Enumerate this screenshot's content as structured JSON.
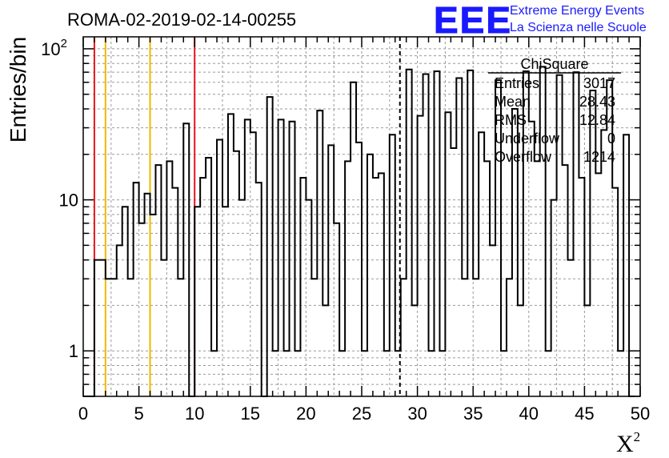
{
  "chart_data": {
    "type": "bar",
    "title": "ROMA-02-2019-02-14-00255",
    "xlabel": "X",
    "xlabel_sup": "2",
    "ylabel": "Entries/bin",
    "xlim": [
      0,
      50
    ],
    "ylim": [
      0.5,
      120
    ],
    "yscale": "log",
    "grid": true,
    "bin_width": 0.5,
    "x_ticks": [
      0,
      5,
      10,
      15,
      20,
      25,
      30,
      35,
      40,
      45,
      50
    ],
    "y_ticks": [
      {
        "value": 1,
        "label": "1"
      },
      {
        "value": 10,
        "label": "10"
      },
      {
        "value": 100,
        "label": "10",
        "sup": "2"
      }
    ],
    "values": [
      0,
      0,
      4,
      4,
      3,
      3,
      5,
      9,
      3,
      13,
      7,
      11,
      8,
      17,
      4,
      18,
      12,
      3,
      32,
      0,
      9,
      14,
      19,
      1,
      25,
      9,
      37,
      21,
      10,
      34,
      28,
      13,
      0,
      48,
      1,
      34,
      1,
      33,
      1,
      14,
      10,
      3,
      39,
      2,
      23,
      7,
      1,
      18,
      60,
      24,
      1,
      20,
      14,
      15,
      1,
      27,
      1,
      3,
      73,
      2,
      36,
      68,
      1,
      71,
      1,
      38,
      22,
      64,
      3,
      72,
      3,
      28,
      18,
      5,
      62,
      1,
      3,
      40,
      2,
      71,
      33,
      18,
      76,
      1,
      10,
      67,
      17,
      4,
      70,
      14,
      2,
      53,
      15,
      29,
      62,
      12,
      1,
      27,
      0
    ],
    "vlines": [
      {
        "x": 1,
        "color": "#e8141e",
        "style": "solid"
      },
      {
        "x": 2,
        "color": "#f2b800",
        "style": "solid"
      },
      {
        "x": 6,
        "color": "#f2b800",
        "style": "solid"
      },
      {
        "x": 10,
        "color": "#e8141e",
        "style": "solid"
      },
      {
        "x": 28.43,
        "color": "#000000",
        "style": "dashed"
      }
    ],
    "stats": {
      "name": "ChiSquare",
      "rows": [
        {
          "label": "Entries",
          "value": "3017"
        },
        {
          "label": "Mean",
          "value": "28.43"
        },
        {
          "label": "RMS",
          "value": "12.84"
        },
        {
          "label": "Underflow",
          "value": "0"
        },
        {
          "label": "Overflow",
          "value": "1214"
        }
      ]
    }
  },
  "logo": {
    "mark": "EEE",
    "line1": "Extreme Energy Events",
    "line2": "La Scienza nelle Scuole",
    "color": "#1a1aff"
  }
}
